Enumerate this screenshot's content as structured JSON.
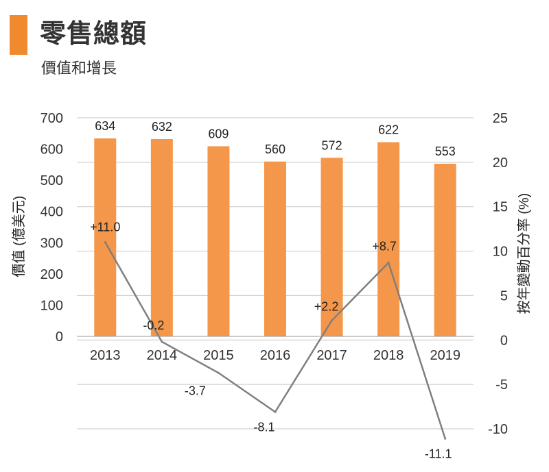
{
  "title": "零售總額",
  "subtitle": "價值和增長",
  "colors": {
    "accent": "#f08a2f",
    "bar": "#f5974a",
    "line": "#7f7f7f",
    "grid": "#c8c8c8"
  },
  "chart_data": {
    "type": "bar+line",
    "categories": [
      "2013",
      "2014",
      "2015",
      "2016",
      "2017",
      "2018",
      "2019"
    ],
    "series": [
      {
        "values": [
          634,
          632,
          609,
          560,
          572,
          622,
          553
        ],
        "axis": "left",
        "kind": "bar"
      },
      {
        "values": [
          11.0,
          -0.2,
          -3.7,
          -8.1,
          2.2,
          8.7,
          -11.1
        ],
        "axis": "right",
        "kind": "line"
      }
    ],
    "value_labels": [
      "634",
      "632",
      "609",
      "560",
      "572",
      "622",
      "553"
    ],
    "point_labels": [
      "+11.0",
      "-0.2",
      "-3.7",
      "-8.1",
      "+2.2",
      "+8.7",
      "-11.1"
    ],
    "ylabel_left": "價值 (億美元)",
    "ylabel_right": "按年變動百分率 (%)",
    "ylim_left": [
      0,
      700
    ],
    "yticks_left": [
      "0",
      "100",
      "200",
      "300",
      "400",
      "500",
      "600",
      "700"
    ],
    "ylim_right": [
      -10,
      25
    ],
    "yticks_right": [
      "-10",
      "-5",
      "0",
      "5",
      "10",
      "15",
      "20",
      "25"
    ],
    "grid": true
  }
}
